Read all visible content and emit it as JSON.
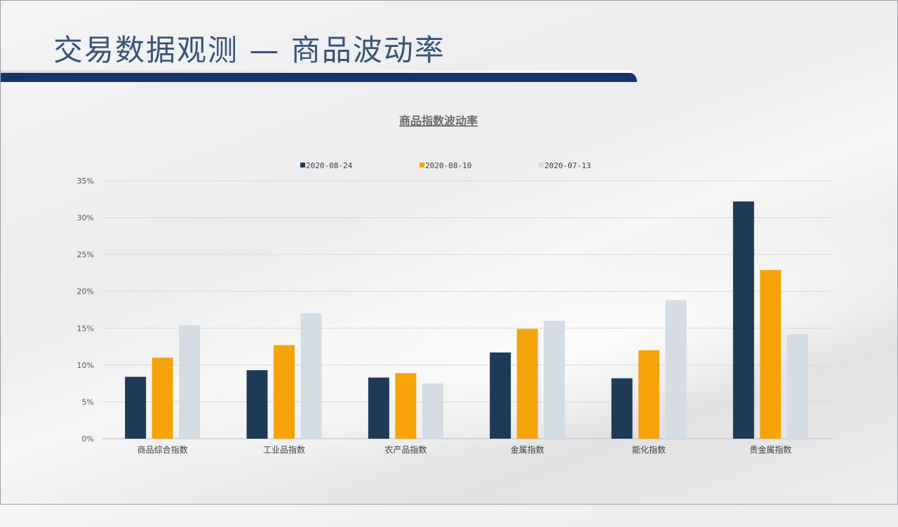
{
  "slide": {
    "title": "交易数据观测 — 商品波动率"
  },
  "colors": {
    "title_text": "#3a5478",
    "title_bar": "#17336a",
    "series": [
      "#1f3a56",
      "#f6a30a",
      "#d5dce4"
    ]
  },
  "chart_data": {
    "type": "bar",
    "title": "商品指数波动率",
    "categories": [
      "商品综合指数",
      "工业品指数",
      "农产品指数",
      "金属指数",
      "能化指数",
      "贵金属指数"
    ],
    "series": [
      {
        "name": "2020-08-24",
        "values": [
          8.4,
          9.3,
          8.3,
          11.7,
          8.2,
          32.2
        ]
      },
      {
        "name": "2020-08-10",
        "values": [
          11.0,
          12.7,
          8.9,
          14.9,
          12.0,
          22.9
        ]
      },
      {
        "name": "2020-07-13",
        "values": [
          15.4,
          17.0,
          7.5,
          16.0,
          18.8,
          14.2
        ]
      }
    ],
    "ylim": [
      0,
      35
    ],
    "yticks": [
      0,
      5,
      10,
      15,
      20,
      25,
      30,
      35
    ],
    "ytick_labels": [
      "0%",
      "5%",
      "10%",
      "15%",
      "20%",
      "25%",
      "30%",
      "35%"
    ],
    "grid": true,
    "legend": "top"
  }
}
